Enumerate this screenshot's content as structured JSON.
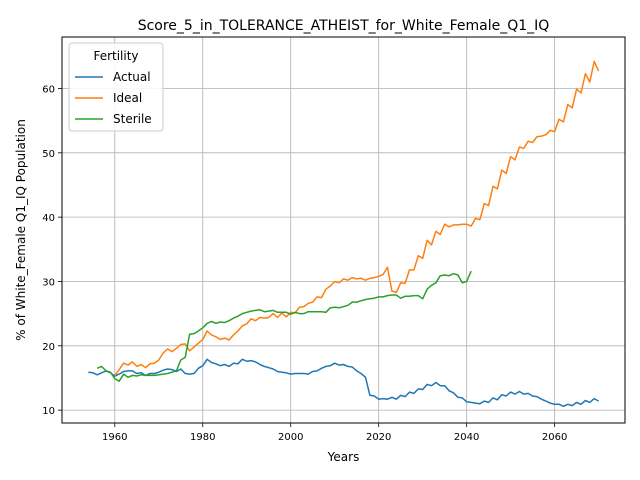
{
  "chart_data": {
    "type": "line",
    "title": "Score_5_in_TOLERANCE_ATHEIST_for_White_Female_Q1_IQ",
    "xlabel": "Years",
    "ylabel": "% of White_Female Q1_IQ Population",
    "xlim": [
      1948,
      2076
    ],
    "ylim": [
      8,
      68
    ],
    "xticks": [
      1960,
      1980,
      2000,
      2020,
      2040,
      2060
    ],
    "yticks": [
      10,
      20,
      30,
      40,
      50,
      60
    ],
    "grid": true,
    "legend": {
      "title": "Fertility",
      "position": "upper-left"
    },
    "series": [
      {
        "name": "Actual",
        "color": "#1f77b4",
        "points": [
          [
            1954,
            15.9
          ],
          [
            1955,
            15.8
          ],
          [
            1956,
            15.5
          ],
          [
            1957,
            15.8
          ],
          [
            1958,
            16.1
          ],
          [
            1959,
            15.8
          ],
          [
            1960,
            15.3
          ],
          [
            1961,
            15.6
          ],
          [
            1962,
            16.0
          ],
          [
            1963,
            16.1
          ],
          [
            1964,
            16.1
          ],
          [
            1965,
            15.7
          ],
          [
            1966,
            15.8
          ],
          [
            1967,
            15.4
          ],
          [
            1968,
            15.7
          ],
          [
            1969,
            15.7
          ],
          [
            1970,
            15.9
          ],
          [
            1971,
            16.2
          ],
          [
            1972,
            16.4
          ],
          [
            1973,
            16.3
          ],
          [
            1974,
            16.0
          ],
          [
            1975,
            16.4
          ],
          [
            1976,
            15.7
          ],
          [
            1977,
            15.6
          ],
          [
            1978,
            15.7
          ],
          [
            1979,
            16.5
          ],
          [
            1980,
            16.9
          ],
          [
            1981,
            17.9
          ],
          [
            1982,
            17.4
          ],
          [
            1983,
            17.2
          ],
          [
            1984,
            16.9
          ],
          [
            1985,
            17.1
          ],
          [
            1986,
            16.8
          ],
          [
            1987,
            17.3
          ],
          [
            1988,
            17.2
          ],
          [
            1989,
            17.9
          ],
          [
            1990,
            17.6
          ],
          [
            1991,
            17.7
          ],
          [
            1992,
            17.5
          ],
          [
            1993,
            17.1
          ],
          [
            1994,
            16.8
          ],
          [
            1995,
            16.6
          ],
          [
            1996,
            16.4
          ],
          [
            1997,
            16.0
          ],
          [
            1998,
            15.9
          ],
          [
            1999,
            15.8
          ],
          [
            2000,
            15.6
          ],
          [
            2001,
            15.7
          ],
          [
            2002,
            15.7
          ],
          [
            2003,
            15.7
          ],
          [
            2004,
            15.6
          ],
          [
            2005,
            16.0
          ],
          [
            2006,
            16.1
          ],
          [
            2007,
            16.5
          ],
          [
            2008,
            16.8
          ],
          [
            2009,
            16.9
          ],
          [
            2010,
            17.3
          ],
          [
            2011,
            17.0
          ],
          [
            2012,
            17.1
          ],
          [
            2013,
            16.8
          ],
          [
            2014,
            16.7
          ],
          [
            2015,
            16.1
          ],
          [
            2016,
            15.7
          ],
          [
            2017,
            15.1
          ],
          [
            2018,
            12.3
          ],
          [
            2019,
            12.2
          ],
          [
            2020,
            11.7
          ],
          [
            2021,
            11.8
          ],
          [
            2022,
            11.7
          ],
          [
            2023,
            12.0
          ],
          [
            2024,
            11.7
          ],
          [
            2025,
            12.3
          ],
          [
            2026,
            12.1
          ],
          [
            2027,
            12.8
          ],
          [
            2028,
            12.6
          ],
          [
            2029,
            13.3
          ],
          [
            2030,
            13.2
          ],
          [
            2031,
            14.0
          ],
          [
            2032,
            13.8
          ],
          [
            2033,
            14.3
          ],
          [
            2034,
            13.8
          ],
          [
            2035,
            13.8
          ],
          [
            2036,
            13.0
          ],
          [
            2037,
            12.7
          ],
          [
            2038,
            12.0
          ],
          [
            2039,
            11.9
          ],
          [
            2040,
            11.3
          ],
          [
            2041,
            11.2
          ],
          [
            2042,
            11.1
          ],
          [
            2043,
            11.0
          ],
          [
            2044,
            11.4
          ],
          [
            2045,
            11.2
          ],
          [
            2046,
            11.9
          ],
          [
            2047,
            11.6
          ],
          [
            2048,
            12.4
          ],
          [
            2049,
            12.2
          ],
          [
            2050,
            12.8
          ],
          [
            2051,
            12.5
          ],
          [
            2052,
            12.9
          ],
          [
            2053,
            12.5
          ],
          [
            2054,
            12.6
          ],
          [
            2055,
            12.2
          ],
          [
            2056,
            12.1
          ],
          [
            2057,
            11.7
          ],
          [
            2058,
            11.4
          ],
          [
            2059,
            11.1
          ],
          [
            2060,
            10.9
          ],
          [
            2061,
            10.9
          ],
          [
            2062,
            10.6
          ],
          [
            2063,
            10.9
          ],
          [
            2064,
            10.7
          ],
          [
            2065,
            11.2
          ],
          [
            2066,
            10.9
          ],
          [
            2067,
            11.5
          ],
          [
            2068,
            11.2
          ],
          [
            2069,
            11.8
          ],
          [
            2070,
            11.4
          ]
        ]
      },
      {
        "name": "Ideal",
        "color": "#ff7f0e",
        "points": [
          [
            1960,
            15.4
          ],
          [
            1961,
            16.3
          ],
          [
            1962,
            17.3
          ],
          [
            1963,
            17.0
          ],
          [
            1964,
            17.5
          ],
          [
            1965,
            16.8
          ],
          [
            1966,
            17.1
          ],
          [
            1967,
            16.6
          ],
          [
            1968,
            17.2
          ],
          [
            1969,
            17.3
          ],
          [
            1970,
            17.8
          ],
          [
            1971,
            18.9
          ],
          [
            1972,
            19.5
          ],
          [
            1973,
            19.1
          ],
          [
            1974,
            19.6
          ],
          [
            1975,
            20.2
          ],
          [
            1976,
            20.3
          ],
          [
            1977,
            19.2
          ],
          [
            1978,
            19.8
          ],
          [
            1979,
            20.4
          ],
          [
            1980,
            21.0
          ],
          [
            1981,
            22.3
          ],
          [
            1982,
            21.7
          ],
          [
            1983,
            21.4
          ],
          [
            1984,
            21.0
          ],
          [
            1985,
            21.2
          ],
          [
            1986,
            20.9
          ],
          [
            1987,
            21.7
          ],
          [
            1988,
            22.3
          ],
          [
            1989,
            23.1
          ],
          [
            1990,
            23.4
          ],
          [
            1991,
            24.2
          ],
          [
            1992,
            23.9
          ],
          [
            1993,
            24.4
          ],
          [
            1994,
            24.3
          ],
          [
            1995,
            24.4
          ],
          [
            1996,
            25.0
          ],
          [
            1997,
            24.4
          ],
          [
            1998,
            25.1
          ],
          [
            1999,
            24.5
          ],
          [
            2000,
            25.2
          ],
          [
            2001,
            25.1
          ],
          [
            2002,
            26.0
          ],
          [
            2003,
            26.1
          ],
          [
            2004,
            26.6
          ],
          [
            2005,
            26.8
          ],
          [
            2006,
            27.6
          ],
          [
            2007,
            27.5
          ],
          [
            2008,
            28.8
          ],
          [
            2009,
            29.3
          ],
          [
            2010,
            30.0
          ],
          [
            2011,
            29.8
          ],
          [
            2012,
            30.4
          ],
          [
            2013,
            30.2
          ],
          [
            2014,
            30.6
          ],
          [
            2015,
            30.4
          ],
          [
            2016,
            30.5
          ],
          [
            2017,
            30.2
          ],
          [
            2018,
            30.5
          ],
          [
            2019,
            30.6
          ],
          [
            2020,
            30.8
          ],
          [
            2021,
            31.1
          ],
          [
            2022,
            32.2
          ],
          [
            2023,
            28.5
          ],
          [
            2024,
            28.3
          ],
          [
            2025,
            29.8
          ],
          [
            2026,
            29.7
          ],
          [
            2027,
            31.8
          ],
          [
            2028,
            31.8
          ],
          [
            2029,
            34.0
          ],
          [
            2030,
            33.6
          ],
          [
            2031,
            36.4
          ],
          [
            2032,
            35.7
          ],
          [
            2033,
            37.8
          ],
          [
            2034,
            37.3
          ],
          [
            2035,
            38.9
          ],
          [
            2036,
            38.5
          ],
          [
            2037,
            38.8
          ],
          [
            2038,
            38.8
          ],
          [
            2039,
            38.9
          ],
          [
            2040,
            38.9
          ],
          [
            2041,
            38.6
          ],
          [
            2042,
            39.8
          ],
          [
            2043,
            39.6
          ],
          [
            2044,
            42.1
          ],
          [
            2045,
            41.8
          ],
          [
            2046,
            44.8
          ],
          [
            2047,
            44.4
          ],
          [
            2048,
            47.3
          ],
          [
            2049,
            46.8
          ],
          [
            2050,
            49.4
          ],
          [
            2051,
            48.9
          ],
          [
            2052,
            50.9
          ],
          [
            2053,
            50.7
          ],
          [
            2054,
            51.8
          ],
          [
            2055,
            51.6
          ],
          [
            2056,
            52.5
          ],
          [
            2057,
            52.6
          ],
          [
            2058,
            52.8
          ],
          [
            2059,
            53.5
          ],
          [
            2060,
            53.3
          ],
          [
            2061,
            55.2
          ],
          [
            2062,
            54.8
          ],
          [
            2063,
            57.5
          ],
          [
            2064,
            57.0
          ],
          [
            2065,
            59.9
          ],
          [
            2066,
            59.3
          ],
          [
            2067,
            62.3
          ],
          [
            2068,
            61.0
          ],
          [
            2069,
            64.2
          ],
          [
            2070,
            62.7
          ]
        ]
      },
      {
        "name": "Sterile",
        "color": "#2ca02c",
        "points": [
          [
            1956,
            16.5
          ],
          [
            1957,
            16.8
          ],
          [
            1958,
            16.1
          ],
          [
            1959,
            15.9
          ],
          [
            1960,
            14.9
          ],
          [
            1961,
            14.5
          ],
          [
            1962,
            15.6
          ],
          [
            1963,
            15.1
          ],
          [
            1964,
            15.4
          ],
          [
            1965,
            15.3
          ],
          [
            1966,
            15.5
          ],
          [
            1967,
            15.4
          ],
          [
            1968,
            15.4
          ],
          [
            1969,
            15.4
          ],
          [
            1970,
            15.5
          ],
          [
            1971,
            15.6
          ],
          [
            1972,
            15.7
          ],
          [
            1973,
            15.9
          ],
          [
            1974,
            16.1
          ],
          [
            1975,
            17.8
          ],
          [
            1976,
            18.2
          ],
          [
            1977,
            21.8
          ],
          [
            1978,
            21.9
          ],
          [
            1979,
            22.3
          ],
          [
            1980,
            22.8
          ],
          [
            1981,
            23.5
          ],
          [
            1982,
            23.8
          ],
          [
            1983,
            23.5
          ],
          [
            1984,
            23.7
          ],
          [
            1985,
            23.6
          ],
          [
            1986,
            23.9
          ],
          [
            1987,
            24.3
          ],
          [
            1988,
            24.6
          ],
          [
            1989,
            25.0
          ],
          [
            1990,
            25.2
          ],
          [
            1991,
            25.4
          ],
          [
            1992,
            25.5
          ],
          [
            1993,
            25.6
          ],
          [
            1994,
            25.3
          ],
          [
            1995,
            25.4
          ],
          [
            1996,
            25.5
          ],
          [
            1997,
            25.2
          ],
          [
            1998,
            25.2
          ],
          [
            1999,
            25.2
          ],
          [
            2000,
            24.9
          ],
          [
            2001,
            25.2
          ],
          [
            2002,
            25.0
          ],
          [
            2003,
            25.0
          ],
          [
            2004,
            25.3
          ],
          [
            2005,
            25.3
          ],
          [
            2006,
            25.3
          ],
          [
            2007,
            25.3
          ],
          [
            2008,
            25.2
          ],
          [
            2009,
            25.9
          ],
          [
            2010,
            26.0
          ],
          [
            2011,
            25.9
          ],
          [
            2012,
            26.1
          ],
          [
            2013,
            26.3
          ],
          [
            2014,
            26.8
          ],
          [
            2015,
            26.8
          ],
          [
            2016,
            27.0
          ],
          [
            2017,
            27.2
          ],
          [
            2018,
            27.3
          ],
          [
            2019,
            27.4
          ],
          [
            2020,
            27.6
          ],
          [
            2021,
            27.6
          ],
          [
            2022,
            27.8
          ],
          [
            2023,
            27.9
          ],
          [
            2024,
            27.9
          ],
          [
            2025,
            27.4
          ],
          [
            2026,
            27.7
          ],
          [
            2027,
            27.7
          ],
          [
            2028,
            27.8
          ],
          [
            2029,
            27.8
          ],
          [
            2030,
            27.3
          ],
          [
            2031,
            28.8
          ],
          [
            2032,
            29.4
          ],
          [
            2033,
            29.8
          ],
          [
            2034,
            30.9
          ],
          [
            2035,
            31.0
          ],
          [
            2036,
            30.9
          ],
          [
            2037,
            31.2
          ],
          [
            2038,
            31.0
          ],
          [
            2039,
            29.8
          ],
          [
            2040,
            30.0
          ],
          [
            2041,
            31.6
          ]
        ]
      }
    ]
  }
}
